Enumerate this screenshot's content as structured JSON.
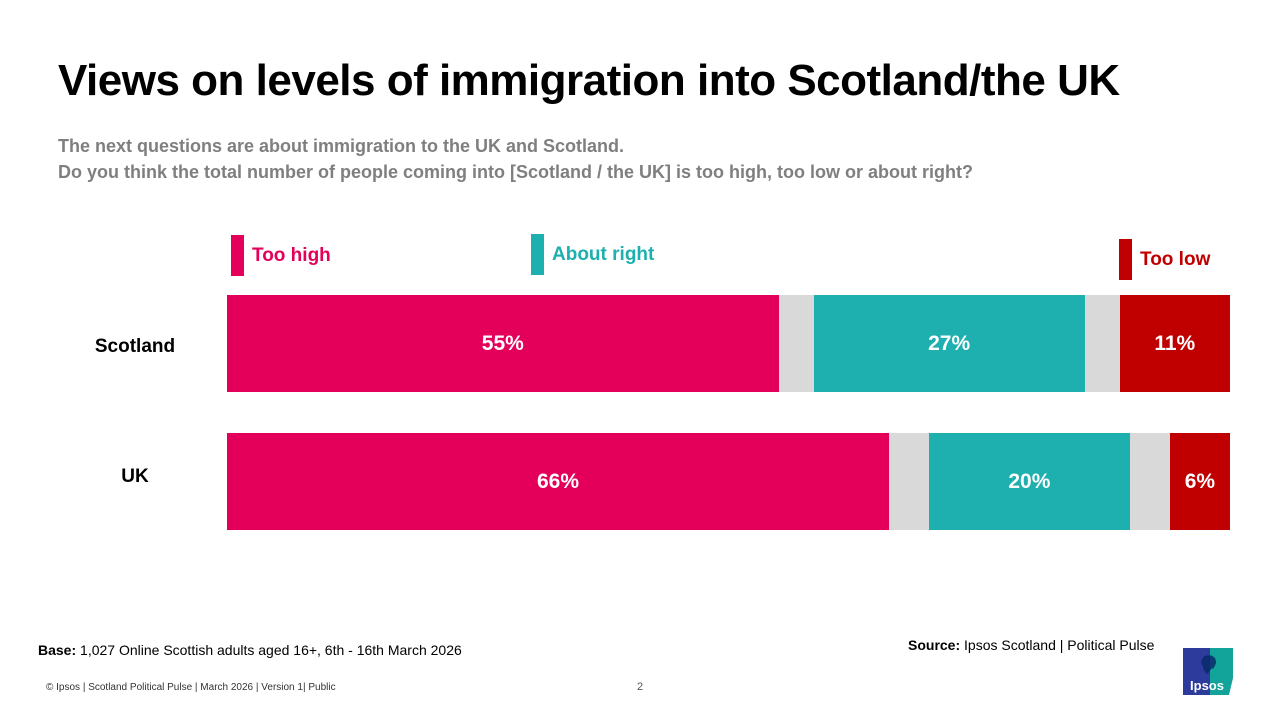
{
  "title": "Views on levels of immigration into Scotland/the UK",
  "subtitle": {
    "line1": "The next questions are about immigration to the UK and Scotland.",
    "line2": "Do you think the total number of people coming into [Scotland / the UK] is too high, too low or about right?"
  },
  "chart_data": {
    "type": "bar",
    "orientation": "horizontal-stacked",
    "title": "Views on levels of immigration into Scotland/the UK",
    "categories": [
      "Scotland",
      "UK"
    ],
    "series": [
      {
        "name": "Too high",
        "color": "#e4005a",
        "values": [
          55,
          66
        ],
        "labels": [
          "55%",
          "66%"
        ]
      },
      {
        "name": "About right",
        "color": "#1eafaf",
        "values": [
          27,
          20
        ],
        "labels": [
          "27%",
          "20%"
        ]
      },
      {
        "name": "Too low",
        "color": "#c00000",
        "values": [
          11,
          6
        ],
        "labels": [
          "11%",
          "6%"
        ]
      }
    ],
    "remainder_color": "#d9d9d9",
    "legend": [
      "Too high",
      "About right",
      "Too low"
    ],
    "legend_position": "top",
    "xlim": [
      0,
      100
    ],
    "grid": false
  },
  "footer": {
    "base_label": "Base:",
    "base_text": " 1,027 Online Scottish adults aged 16+, 6th - 16th March 2026",
    "source_label": "Source:",
    "source_text": " Ipsos Scotland | Political Pulse",
    "copyright": "© Ipsos | Scotland Political Pulse  | March 2026  | Version 1| Public",
    "page_number": "2"
  },
  "logo": {
    "text": "Ipsos",
    "colors": {
      "left": "#2d3b9c",
      "right": "#12a39b"
    }
  }
}
